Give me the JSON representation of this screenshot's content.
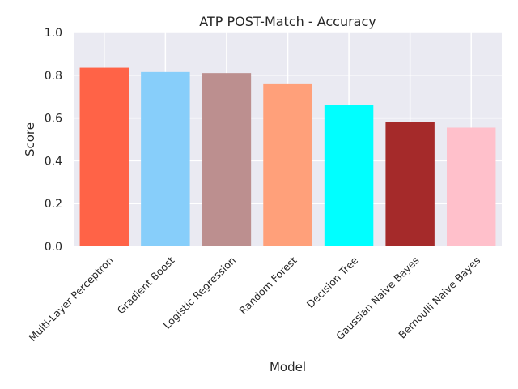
{
  "chart_data": {
    "type": "bar",
    "title": "ATP POST-Match - Accuracy",
    "xlabel": "Model",
    "ylabel": "Score",
    "ylim": [
      0,
      1.0
    ],
    "yticks": [
      "0.0",
      "0.2",
      "0.4",
      "0.6",
      "0.8",
      "1.0"
    ],
    "grid": true,
    "categories": [
      "Multi-Layer Perceptron",
      "Gradient Boost",
      "Logistic Regression",
      "Random Forest",
      "Decision Tree",
      "Gaussian Naive Bayes",
      "Bernoulli Naive Bayes"
    ],
    "values": [
      0.835,
      0.815,
      0.81,
      0.758,
      0.66,
      0.58,
      0.555
    ],
    "colors": [
      "#ff6347",
      "#87cefa",
      "#bc8f8f",
      "#ffa07a",
      "#00ffff",
      "#a52a2a",
      "#ffc0cb"
    ],
    "background_color": "#eaeaf2",
    "grid_color": "#ffffff"
  }
}
